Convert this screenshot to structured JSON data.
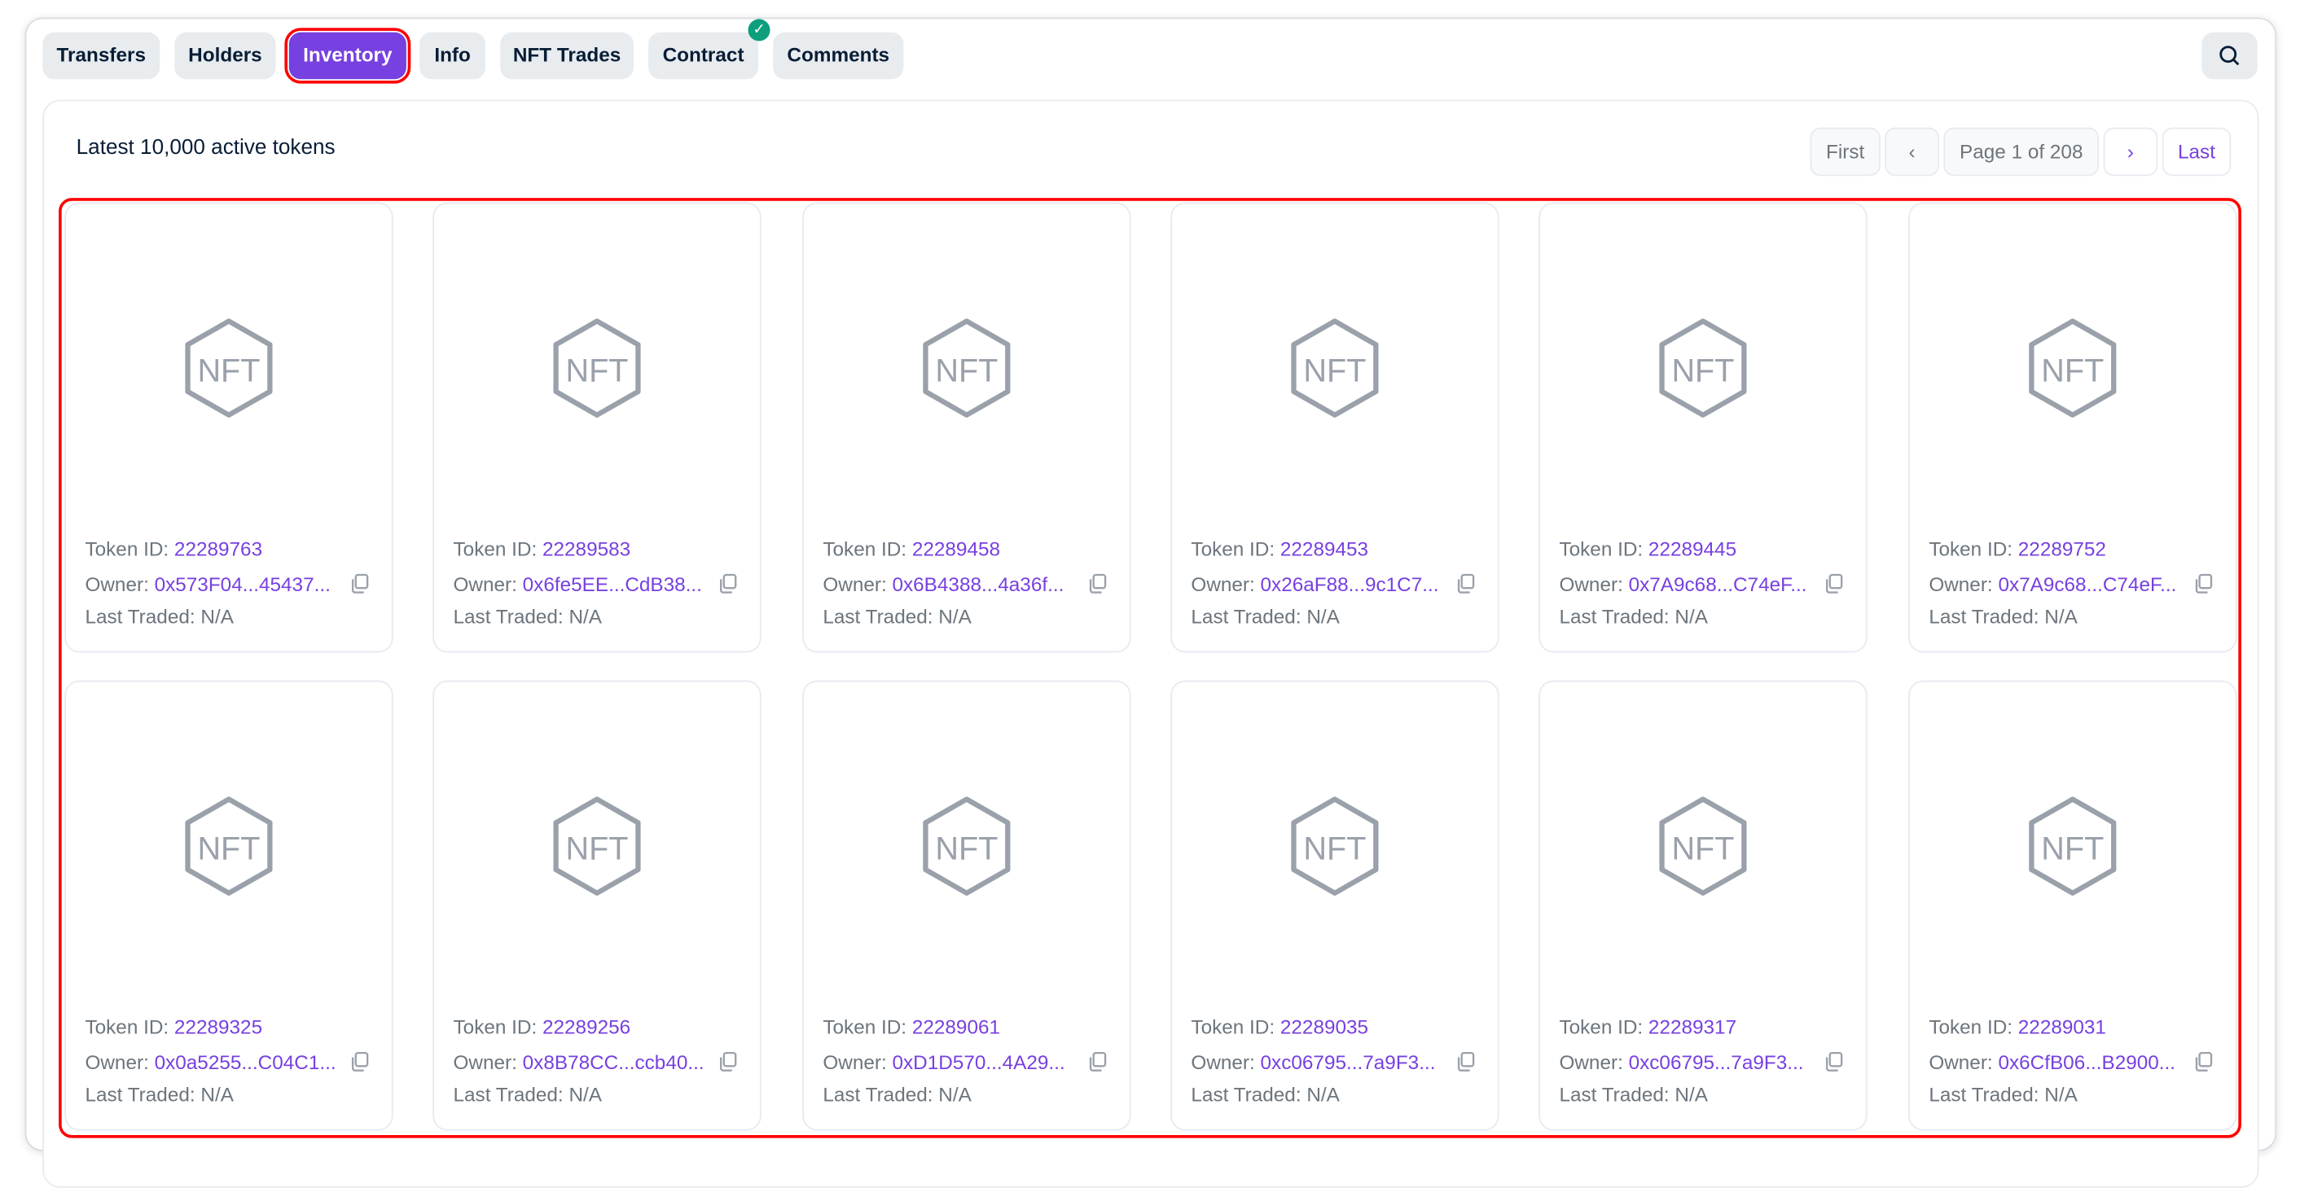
{
  "tabs": [
    {
      "label": "Transfers"
    },
    {
      "label": "Holders"
    },
    {
      "label": "Inventory",
      "active": true
    },
    {
      "label": "Info"
    },
    {
      "label": "NFT Trades"
    },
    {
      "label": "Contract",
      "verified": true
    },
    {
      "label": "Comments"
    }
  ],
  "search_icon": "search-icon",
  "inventory": {
    "title": "Latest 10,000 active tokens",
    "pagination": {
      "first": "First",
      "page": "Page 1 of 208",
      "last": "Last"
    },
    "token_label": "Token ID: ",
    "owner_label": "Owner: ",
    "traded_label": "Last Traded: ",
    "tokens": [
      {
        "id": "22289763",
        "owner": "0x573F04...45437...",
        "last_traded": "N/A"
      },
      {
        "id": "22289583",
        "owner": "0x6fe5EE...CdB38...",
        "last_traded": "N/A"
      },
      {
        "id": "22289458",
        "owner": "0x6B4388...4a36f...",
        "last_traded": "N/A"
      },
      {
        "id": "22289453",
        "owner": "0x26aF88...9c1C7...",
        "last_traded": "N/A"
      },
      {
        "id": "22289445",
        "owner": "0x7A9c68...C74eF...",
        "last_traded": "N/A"
      },
      {
        "id": "22289752",
        "owner": "0x7A9c68...C74eF...",
        "last_traded": "N/A"
      },
      {
        "id": "22289325",
        "owner": "0x0a5255...C04C1...",
        "last_traded": "N/A"
      },
      {
        "id": "22289256",
        "owner": "0x8B78CC...ccb40...",
        "last_traded": "N/A"
      },
      {
        "id": "22289061",
        "owner": "0xD1D570...4A29...",
        "last_traded": "N/A"
      },
      {
        "id": "22289035",
        "owner": "0xc06795...7a9F3...",
        "last_traded": "N/A"
      },
      {
        "id": "22289317",
        "owner": "0xc06795...7a9F3...",
        "last_traded": "N/A"
      },
      {
        "id": "22289031",
        "owner": "0x6CfB06...B2900...",
        "last_traded": "N/A"
      }
    ]
  },
  "colors": {
    "accent": "#7740e0",
    "highlight": "#ff0000",
    "verified": "#0d9f7d"
  }
}
